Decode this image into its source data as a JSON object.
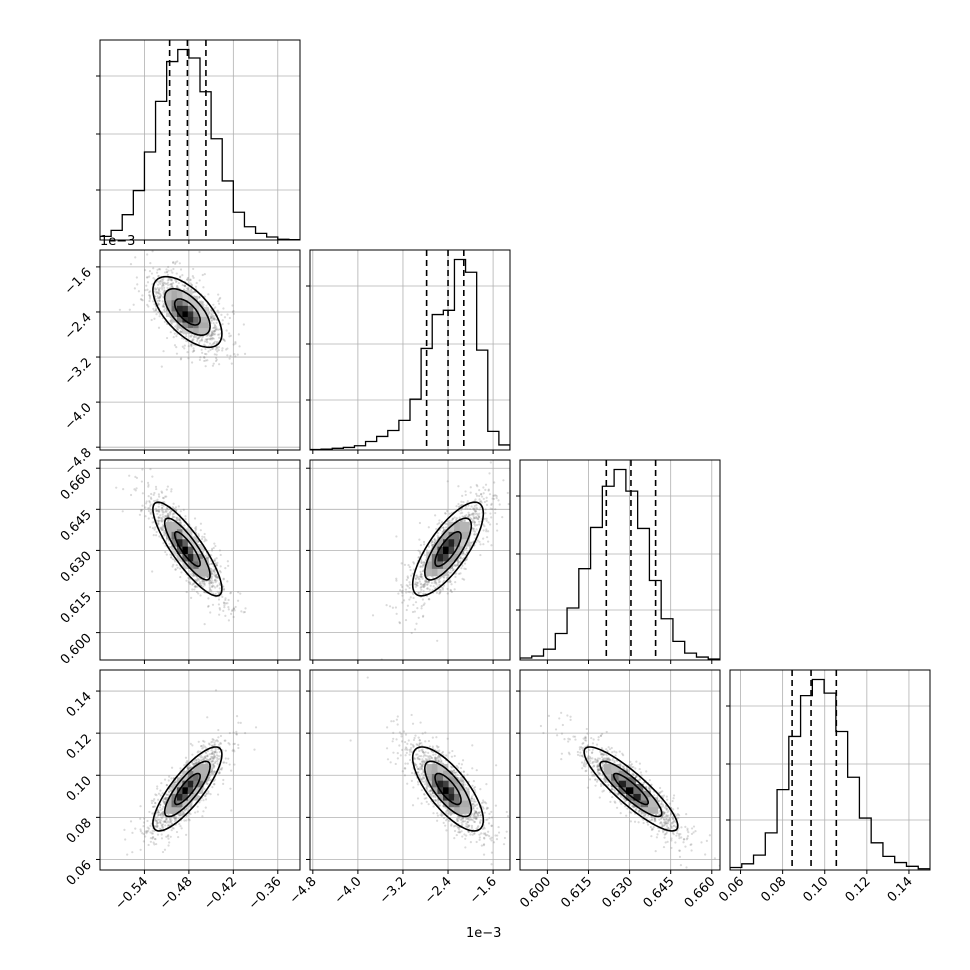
{
  "chart_data": {
    "type": "corner",
    "parameters": [
      {
        "range": [
          -0.6,
          -0.33
        ],
        "ticks": [
          -0.54,
          -0.48,
          -0.42,
          -0.36
        ],
        "tick_labels": [
          "−0.54",
          "−0.48",
          "−0.42",
          "−0.36"
        ],
        "quantiles": [
          -0.506,
          -0.482,
          -0.457
        ],
        "hist": [
          0.3,
          0.8,
          2.1,
          4.1,
          7.3,
          11.5,
          14.8,
          15.8,
          15.1,
          12.3,
          8.4,
          4.9,
          2.3,
          1.1,
          0.55,
          0.25,
          0.06,
          0.03
        ]
      },
      {
        "offset_label": "1e−3",
        "range": [
          -4.85,
          -1.3
        ],
        "ticks": [
          -4.8,
          -4.0,
          -3.2,
          -2.4,
          -1.6
        ],
        "tick_labels": [
          "−4.8",
          "−4.0",
          "−3.2",
          "−2.4",
          "−1.6"
        ],
        "quantiles": [
          -2.78,
          -2.4,
          -2.12
        ],
        "hist": [
          0.05,
          0.1,
          0.2,
          0.3,
          0.5,
          1.0,
          1.6,
          2.3,
          3.5,
          6.0,
          12.0,
          16.0,
          16.5,
          22.5,
          21.0,
          11.8,
          2.2,
          0.6
        ]
      },
      {
        "range": [
          0.59,
          0.663
        ],
        "ticks": [
          0.6,
          0.615,
          0.63,
          0.645,
          0.66
        ],
        "tick_labels": [
          "0.600",
          "0.615",
          "0.630",
          "0.645",
          "0.660"
        ],
        "quantiles": [
          0.6215,
          0.6305,
          0.6395
        ],
        "hist": [
          0.2,
          0.4,
          1.1,
          2.7,
          5.3,
          9.3,
          13.5,
          17.7,
          19.4,
          17.2,
          13.4,
          8.1,
          4.2,
          1.9,
          0.7,
          0.3,
          0.1
        ]
      },
      {
        "range": [
          0.055,
          0.15
        ],
        "ticks": [
          0.06,
          0.08,
          0.1,
          0.12,
          0.14
        ],
        "tick_labels": [
          "0.06",
          "0.08",
          "0.10",
          "0.12",
          "0.14"
        ],
        "quantiles": [
          0.0845,
          0.0935,
          0.1055
        ],
        "hist": [
          0.2,
          0.5,
          1.2,
          3.0,
          6.5,
          10.8,
          14.1,
          15.4,
          14.3,
          11.2,
          7.5,
          4.2,
          2.2,
          1.1,
          0.6,
          0.3,
          0.1
        ]
      }
    ],
    "correlations": {
      "1-0": -0.62,
      "2-0": -0.85,
      "2-1": 0.76,
      "3-0": 0.82,
      "3-1": -0.74,
      "3-2": -0.88
    },
    "grid": true
  }
}
